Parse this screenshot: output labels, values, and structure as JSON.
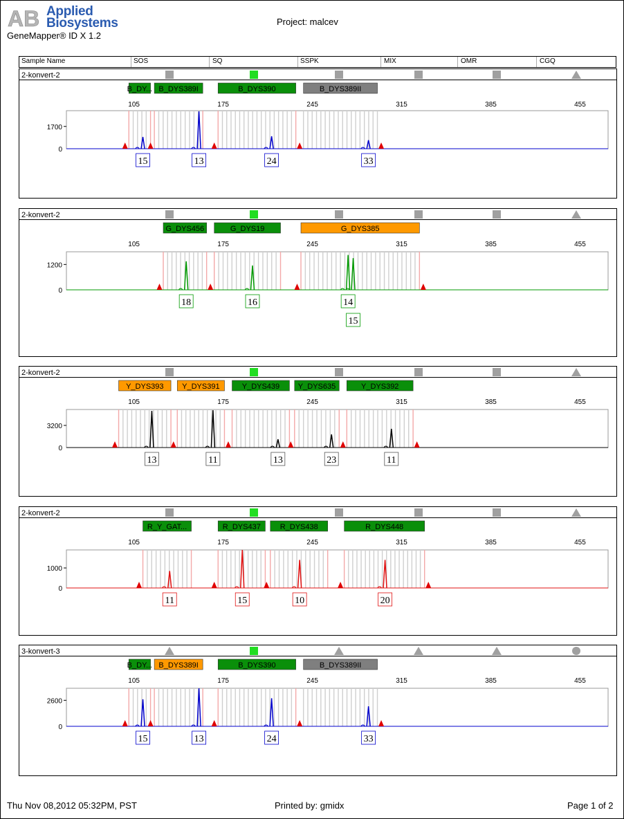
{
  "header": {
    "logo_text": "AB",
    "brand_line1": "Applied",
    "brand_line2": "Biosystems",
    "software": "GeneMapper® ID X  1.2",
    "project": "Project: malcev"
  },
  "columns": [
    "Sample Name",
    "SOS",
    "SQ",
    "SSPK",
    "MIX",
    "OMR",
    "CGQ"
  ],
  "axis_ticks": [
    "105",
    "175",
    "245",
    "315",
    "385",
    "455"
  ],
  "colors": {
    "blue": "#0000cc",
    "green": "#009900",
    "black": "#000000",
    "red": "#e01010",
    "marker_green": "#0a8f0a",
    "marker_orange": "#ff9900",
    "marker_gray": "#7f7f7f",
    "flag_pass": "#22dd22",
    "flag_gray": "#a0a0a0"
  },
  "panels": [
    {
      "name": "2-konvert-2",
      "color": "blue",
      "ymax": 2900,
      "ytick": 1700,
      "flags": [
        "sq-gray",
        "sq-green",
        "sq-gray",
        "sq-gray",
        "sq-gray",
        "tri-gray"
      ],
      "markers": [
        {
          "label": "B_DY...",
          "color": "marker_green",
          "start": 101,
          "end": 118
        },
        {
          "label": "B_DYS389I",
          "color": "marker_green",
          "start": 121,
          "end": 159
        },
        {
          "label": "B_DYS390",
          "color": "marker_green",
          "start": 171,
          "end": 232
        },
        {
          "label": "B_DYS389II",
          "color": "marker_gray",
          "start": 238,
          "end": 296
        }
      ],
      "peaks": [
        {
          "x": 112,
          "h": 900,
          "allele": "15"
        },
        {
          "x": 156,
          "h": 2850,
          "allele": "13"
        },
        {
          "x": 213,
          "h": 950,
          "allele": "24"
        },
        {
          "x": 289,
          "h": 650,
          "allele": "33"
        }
      ],
      "alleles_row2": []
    },
    {
      "name": "2-konvert-2",
      "color": "green",
      "ymax": 1800,
      "ytick": 1200,
      "flags": [
        "sq-gray",
        "sq-green",
        "sq-gray",
        "sq-gray",
        "sq-gray",
        "tri-gray"
      ],
      "markers": [
        {
          "label": "G_DYS456",
          "color": "marker_green",
          "start": 128,
          "end": 162
        },
        {
          "label": "G_DYS19",
          "color": "marker_green",
          "start": 168,
          "end": 220
        },
        {
          "label": "G_DYS385",
          "color": "marker_orange",
          "start": 236,
          "end": 329
        }
      ],
      "peaks": [
        {
          "x": 146,
          "h": 1350,
          "allele": "18"
        },
        {
          "x": 198,
          "h": 1150,
          "allele": "16"
        },
        {
          "x": 273,
          "h": 1650,
          "allele": "14"
        },
        {
          "x": 277,
          "h": 1500,
          "allele": "15"
        }
      ],
      "alleles_row2": [
        "15"
      ]
    },
    {
      "name": "2-konvert-2",
      "color": "black",
      "ymax": 5500,
      "ytick": 3200,
      "flags": [
        "sq-gray",
        "sq-green",
        "sq-gray",
        "sq-gray",
        "sq-gray",
        "tri-gray"
      ],
      "markers": [
        {
          "label": "Y_DYS393",
          "color": "marker_orange",
          "start": 93,
          "end": 134
        },
        {
          "label": "Y_DYS391",
          "color": "marker_orange",
          "start": 139,
          "end": 176
        },
        {
          "label": "Y_DYS439",
          "color": "marker_green",
          "start": 182,
          "end": 227
        },
        {
          "label": "Y_DYS635",
          "color": "marker_green",
          "start": 231,
          "end": 266
        },
        {
          "label": "Y_DYS392",
          "color": "marker_green",
          "start": 272,
          "end": 324
        }
      ],
      "peaks": [
        {
          "x": 119,
          "h": 5300,
          "allele": "13"
        },
        {
          "x": 167,
          "h": 5400,
          "allele": "11"
        },
        {
          "x": 218,
          "h": 1200,
          "allele": "13"
        },
        {
          "x": 260,
          "h": 1900,
          "allele": "23"
        },
        {
          "x": 307,
          "h": 2700,
          "allele": "11"
        }
      ],
      "alleles_row2": []
    },
    {
      "name": "2-konvert-2",
      "color": "red",
      "ymax": 1900,
      "ytick": 1000,
      "flags": [
        "sq-gray",
        "sq-green",
        "sq-gray",
        "sq-gray",
        "sq-gray",
        "tri-gray"
      ],
      "markers": [
        {
          "label": "R_Y_GAT...",
          "color": "marker_green",
          "start": 112,
          "end": 150
        },
        {
          "label": "R_DYS437",
          "color": "marker_green",
          "start": 171,
          "end": 208
        },
        {
          "label": "R_DYS438",
          "color": "marker_green",
          "start": 212,
          "end": 257
        },
        {
          "label": "R_DYS448",
          "color": "marker_green",
          "start": 270,
          "end": 333
        }
      ],
      "peaks": [
        {
          "x": 133,
          "h": 850,
          "allele": "11"
        },
        {
          "x": 190,
          "h": 1900,
          "allele": "15"
        },
        {
          "x": 235,
          "h": 1400,
          "allele": "10"
        },
        {
          "x": 302,
          "h": 1400,
          "allele": "20"
        }
      ],
      "alleles_row2": []
    },
    {
      "name": "3-konvert-3",
      "color": "blue",
      "ymax": 3800,
      "ytick": 2600,
      "flags": [
        "tri-gray",
        "sq-green",
        "tri-gray",
        "tri-gray",
        "tri-gray",
        "circ-gray"
      ],
      "markers": [
        {
          "label": "B_DY...",
          "color": "marker_green",
          "start": 101,
          "end": 118
        },
        {
          "label": "B_DYS389I",
          "color": "marker_orange",
          "start": 121,
          "end": 159
        },
        {
          "label": "B_DYS390",
          "color": "marker_green",
          "start": 171,
          "end": 232
        },
        {
          "label": "B_DYS389II",
          "color": "marker_gray",
          "start": 238,
          "end": 296
        }
      ],
      "peaks": [
        {
          "x": 112,
          "h": 2700,
          "allele": "15"
        },
        {
          "x": 156,
          "h": 3800,
          "allele": "13"
        },
        {
          "x": 213,
          "h": 2800,
          "allele": "24"
        },
        {
          "x": 289,
          "h": 2000,
          "allele": "33"
        }
      ],
      "alleles_row2": []
    }
  ],
  "chart_data": [
    {
      "type": "line",
      "title": "2-konvert-2",
      "series": [
        {
          "name": "blue",
          "values": []
        }
      ],
      "x_ticks": [
        105,
        175,
        245,
        315,
        385,
        455
      ],
      "y_ticks": [
        0,
        1700
      ],
      "peaks": [
        {
          "size": 112,
          "height": 900,
          "allele": "15",
          "marker": "B_DY..."
        },
        {
          "size": 156,
          "height": 2850,
          "allele": "13",
          "marker": "B_DYS389I"
        },
        {
          "size": 213,
          "height": 950,
          "allele": "24",
          "marker": "B_DYS390"
        },
        {
          "size": 289,
          "height": 650,
          "allele": "33",
          "marker": "B_DYS389II"
        }
      ]
    },
    {
      "type": "line",
      "title": "2-konvert-2",
      "series": [
        {
          "name": "green",
          "values": []
        }
      ],
      "x_ticks": [
        105,
        175,
        245,
        315,
        385,
        455
      ],
      "y_ticks": [
        0,
        1200
      ],
      "peaks": [
        {
          "size": 146,
          "height": 1350,
          "allele": "18",
          "marker": "G_DYS456"
        },
        {
          "size": 198,
          "height": 1150,
          "allele": "16",
          "marker": "G_DYS19"
        },
        {
          "size": 273,
          "height": 1650,
          "allele": "14",
          "marker": "G_DYS385"
        },
        {
          "size": 277,
          "height": 1500,
          "allele": "15",
          "marker": "G_DYS385"
        }
      ]
    },
    {
      "type": "line",
      "title": "2-konvert-2",
      "series": [
        {
          "name": "black",
          "values": []
        }
      ],
      "x_ticks": [
        105,
        175,
        245,
        315,
        385,
        455
      ],
      "y_ticks": [
        0,
        3200
      ],
      "peaks": [
        {
          "size": 119,
          "height": 5300,
          "allele": "13",
          "marker": "Y_DYS393"
        },
        {
          "size": 167,
          "height": 5400,
          "allele": "11",
          "marker": "Y_DYS391"
        },
        {
          "size": 218,
          "height": 1200,
          "allele": "13",
          "marker": "Y_DYS439"
        },
        {
          "size": 260,
          "height": 1900,
          "allele": "23",
          "marker": "Y_DYS635"
        },
        {
          "size": 307,
          "height": 2700,
          "allele": "11",
          "marker": "Y_DYS392"
        }
      ]
    },
    {
      "type": "line",
      "title": "2-konvert-2",
      "series": [
        {
          "name": "red",
          "values": []
        }
      ],
      "x_ticks": [
        105,
        175,
        245,
        315,
        385,
        455
      ],
      "y_ticks": [
        0,
        1000
      ],
      "peaks": [
        {
          "size": 133,
          "height": 850,
          "allele": "11",
          "marker": "R_Y_GAT..."
        },
        {
          "size": 190,
          "height": 1900,
          "allele": "15",
          "marker": "R_DYS437"
        },
        {
          "size": 235,
          "height": 1400,
          "allele": "10",
          "marker": "R_DYS438"
        },
        {
          "size": 302,
          "height": 1400,
          "allele": "20",
          "marker": "R_DYS448"
        }
      ]
    },
    {
      "type": "line",
      "title": "3-konvert-3",
      "series": [
        {
          "name": "blue",
          "values": []
        }
      ],
      "x_ticks": [
        105,
        175,
        245,
        315,
        385,
        455
      ],
      "y_ticks": [
        0,
        2600
      ],
      "peaks": [
        {
          "size": 112,
          "height": 2700,
          "allele": "15",
          "marker": "B_DY..."
        },
        {
          "size": 156,
          "height": 3800,
          "allele": "13",
          "marker": "B_DYS389I"
        },
        {
          "size": 213,
          "height": 2800,
          "allele": "24",
          "marker": "B_DYS390"
        },
        {
          "size": 289,
          "height": 2000,
          "allele": "33",
          "marker": "B_DYS389II"
        }
      ]
    }
  ],
  "footer": {
    "timestamp": "Thu Nov 08,2012 05:32PM, PST",
    "printed_by": "Printed by: gmidx",
    "page": "Page 1 of 2"
  }
}
